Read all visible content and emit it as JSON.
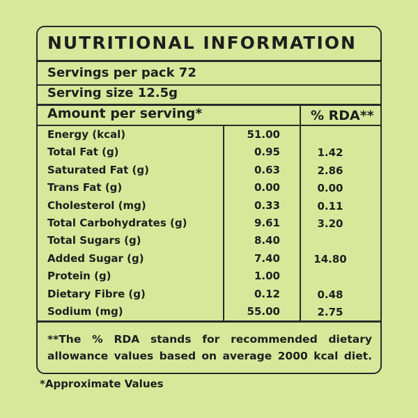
{
  "title": "NUTRITIONAL INFORMATION",
  "servings_per_pack": "Servings per pack 72",
  "serving_size": "Serving size 12.5g",
  "table": {
    "header_amount": "Amount per serving*",
    "header_rda": "% RDA**",
    "rows": [
      {
        "name": "Energy (kcal)",
        "amount": "51.00",
        "rda": ""
      },
      {
        "name": "Total Fat (g)",
        "amount": "0.95",
        "rda": "1.42"
      },
      {
        "name": "Saturated Fat (g)",
        "amount": "0.63",
        "rda": "2.86"
      },
      {
        "name": "Trans Fat (g)",
        "amount": "0.00",
        "rda": "0.00"
      },
      {
        "name": "Cholesterol (mg)",
        "amount": "0.33",
        "rda": "0.11"
      },
      {
        "name": "Total Carbohydrates (g)",
        "amount": "9.61",
        "rda": "3.20"
      },
      {
        "name": "Total Sugars (g)",
        "amount": "8.40",
        "rda": ""
      },
      {
        "name": "Added  Sugar (g)",
        "amount": "7.40",
        "rda": "14.80"
      },
      {
        "name": "Protein (g)",
        "amount": "1.00",
        "rda": ""
      },
      {
        "name": "Dietary Fibre (g)",
        "amount": "0.12",
        "rda": "0.48"
      },
      {
        "name": "Sodium (mg)",
        "amount": "55.00",
        "rda": "2.75"
      }
    ]
  },
  "footnote_line1": "**The % RDA stands for recommended dietary",
  "footnote_line2": "allowance values based on average 2000 kcal diet.",
  "approx_note": "*Approximate Values",
  "colors": {
    "background": "#d8e79a",
    "text": "#1e1e1e",
    "border": "#2a2a2a"
  }
}
